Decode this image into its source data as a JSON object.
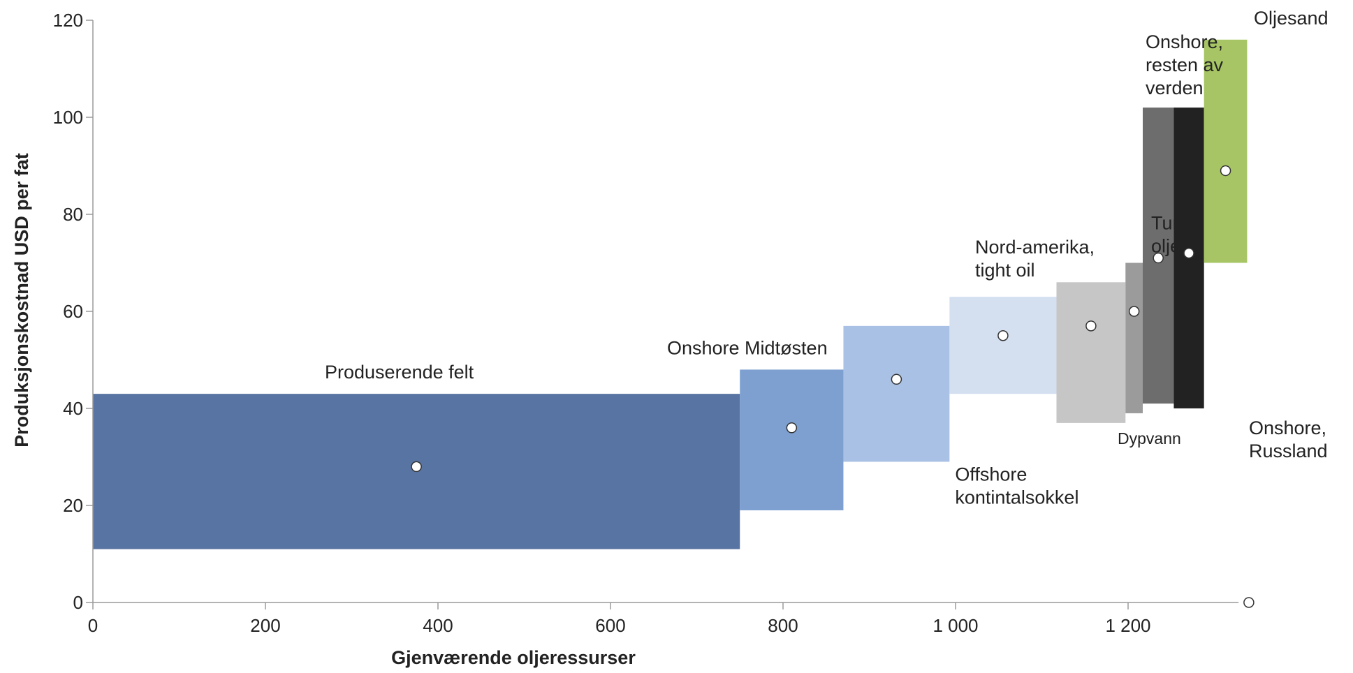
{
  "chart_data": {
    "type": "bar",
    "subtype": "cost-supply-curve",
    "title": "",
    "xlabel": "Gjenværende oljeressurser",
    "ylabel": "Produksjonskostnad USD per fat",
    "xlim": [
      0,
      1320
    ],
    "ylim": [
      0,
      120
    ],
    "xticks": [
      0,
      200,
      400,
      600,
      800,
      1000,
      1200
    ],
    "xtick_labels": [
      "0",
      "200",
      "400",
      "600",
      "800",
      "1 000",
      "1 200"
    ],
    "yticks": [
      0,
      20,
      40,
      60,
      80,
      100,
      120
    ],
    "ytick_labels": [
      "0",
      "20",
      "40",
      "60",
      "80",
      "100",
      "120"
    ],
    "grid": false,
    "legend": "none",
    "series": [
      {
        "name": "Produserende felt",
        "x0": 0,
        "x1": 750,
        "low": 11,
        "high": 43,
        "marker": 28,
        "color": "#5874a2",
        "label_lines": [
          "Produserende felt"
        ],
        "label_anchor": "above"
      },
      {
        "name": "Onshore Midtøsten",
        "x0": 750,
        "x1": 870,
        "low": 19,
        "high": 48,
        "marker": 36,
        "color": "#7da0d1",
        "label_lines": [
          "Onshore Midtøsten"
        ],
        "label_anchor": "above"
      },
      {
        "name": "Offshore kontintalsokkel",
        "x0": 870,
        "x1": 993,
        "low": 29,
        "high": 57,
        "marker": 46,
        "color": "#a9c1e4",
        "label_lines": [
          "Offshore",
          "kontintalsokkel"
        ],
        "label_anchor": "below-right"
      },
      {
        "name": "Nord-amerika, tight oil",
        "x0": 993,
        "x1": 1117,
        "low": 43,
        "high": 63,
        "marker": 55,
        "color": "#d4dff0",
        "label_lines": [
          "Nord-amerika,",
          "tight oil"
        ],
        "label_anchor": "above"
      },
      {
        "name": "Dypvann",
        "x0": 1117,
        "x1": 1197,
        "low": 37,
        "high": 66,
        "marker": 57,
        "color": "#c6c6c6",
        "label_lines": [
          "Dypvann"
        ],
        "label_anchor": "below"
      },
      {
        "name": "Tung olje",
        "x0": 1197,
        "x1": 1217,
        "low": 39,
        "high": 70,
        "marker": 60,
        "color": "#9b9b9b",
        "label_lines": [
          "Tung",
          "olje"
        ],
        "label_anchor": "above"
      },
      {
        "name": "Onshore, resten av verden",
        "x0": 1217,
        "x1": 1253,
        "low": 41,
        "high": 102,
        "marker": 71,
        "color": "#6d6d6d",
        "label_lines": [
          "Onshore,",
          "resten av",
          "verden"
        ],
        "label_anchor": "above-left"
      },
      {
        "name": "Onshore, Russland",
        "x0": 1253,
        "x1": 1288,
        "low": 40,
        "high": 102,
        "marker": 72,
        "color": "#222222",
        "label_lines": [
          "Onshore,",
          "Russland"
        ],
        "label_anchor": "below"
      },
      {
        "name": "Oljesand",
        "x0": 1288,
        "x1": 1338,
        "low": 70,
        "high": 116,
        "marker": 89,
        "color": "#a7c565",
        "label_lines": [
          "Oljesand"
        ],
        "label_anchor": "above"
      }
    ],
    "extra_markers": [
      {
        "x": 1340,
        "y": 0
      }
    ]
  }
}
